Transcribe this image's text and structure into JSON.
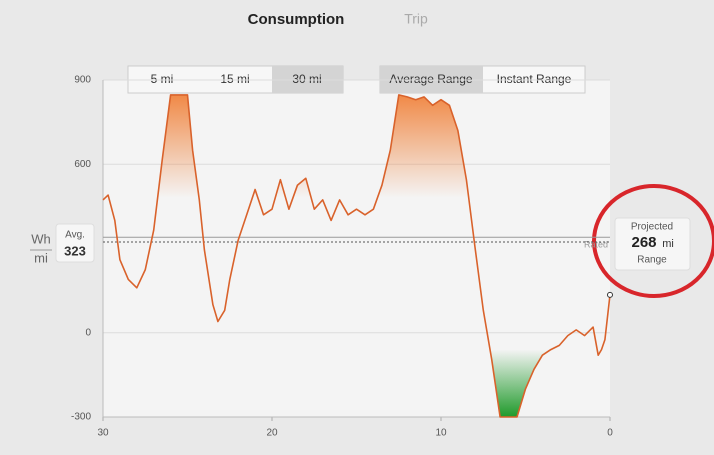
{
  "tabs": [
    "Consumption",
    "Trip"
  ],
  "distance_buttons": [
    "5 mi",
    "15 mi",
    "30 mi"
  ],
  "range_buttons": [
    "Average Range",
    "Instant Range"
  ],
  "projected": {
    "title": "Projected",
    "value": 268,
    "unit": "mi",
    "caption": "Range"
  },
  "chart_data": {
    "type": "line",
    "y_label_top": "Wh",
    "y_label_bottom": "mi",
    "average_label": "Avg.",
    "average": 323,
    "rated_label": "Rated",
    "rated": 340,
    "x": [
      30,
      29.7,
      29.3,
      29,
      28.5,
      28,
      27.5,
      27,
      26.5,
      26,
      25.5,
      25,
      24.7,
      24.3,
      24,
      23.5,
      23.2,
      22.8,
      22.5,
      22,
      21.5,
      21,
      20.5,
      20,
      19.5,
      19,
      18.5,
      18,
      17.5,
      17,
      16.5,
      16,
      15.5,
      15,
      14.5,
      14,
      13.5,
      13,
      12.5,
      12,
      11.5,
      11,
      10.5,
      10,
      9.5,
      9,
      8.5,
      8,
      7.5,
      7,
      6.5,
      6,
      5.5,
      5,
      4.5,
      4,
      3.5,
      3,
      2.5,
      2,
      1.5,
      1,
      0.7,
      0.5,
      0.3,
      0
    ],
    "values": [
      473,
      490,
      400,
      260,
      190,
      160,
      225,
      365,
      615,
      847,
      847,
      847,
      650,
      473,
      295,
      100,
      40,
      80,
      190,
      330,
      420,
      510,
      420,
      440,
      545,
      440,
      525,
      550,
      440,
      473,
      400,
      473,
      420,
      440,
      420,
      440,
      525,
      650,
      847,
      840,
      830,
      840,
      810,
      830,
      810,
      720,
      545,
      310,
      80,
      -95,
      -300,
      -300,
      -300,
      -200,
      -130,
      -80,
      -60,
      -45,
      -10,
      10,
      -10,
      20,
      -80,
      -60,
      -25,
      135
    ],
    "color": "#d9622b",
    "positive_fill": "#f07a2e",
    "negative_fill": "#1f9a2a",
    "xlim": [
      30,
      0
    ],
    "xticks": [
      30,
      20,
      10,
      0
    ],
    "ylim": [
      -300,
      900
    ],
    "yticks": [
      -300,
      0,
      600,
      900
    ],
    "grid": true
  }
}
